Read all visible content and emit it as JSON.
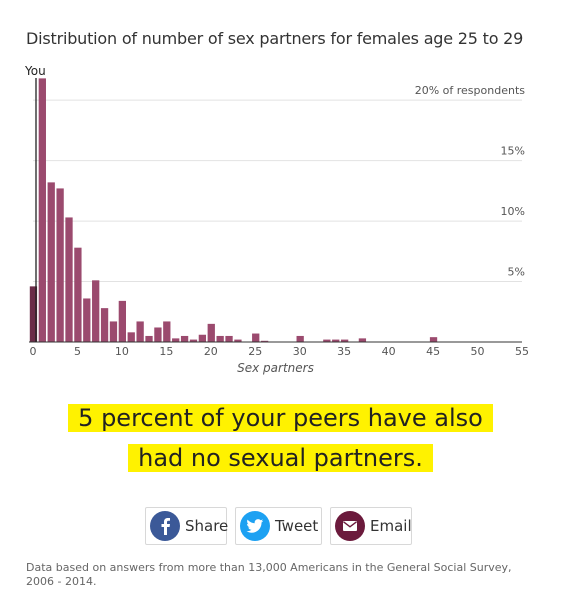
{
  "chart_data": {
    "type": "bar",
    "title": "Distribution of number of sex partners for females age 25 to 29",
    "xlabel": "Sex partners",
    "ylabel": "",
    "xlim": [
      0,
      55
    ],
    "ylim": [
      0,
      21.5
    ],
    "x_ticks": [
      0,
      5,
      10,
      15,
      20,
      25,
      30,
      35,
      40,
      45,
      50,
      55
    ],
    "y_gridlines": [
      {
        "value": 20,
        "label": "20% of respondents"
      },
      {
        "value": 15,
        "label": "15%"
      },
      {
        "value": 10,
        "label": "10%"
      },
      {
        "value": 5,
        "label": "5%"
      }
    ],
    "bar_color": "#9b4a6e",
    "highlight_color": "#6b2c48",
    "highlight_x": 0,
    "marker": {
      "x": 0,
      "label": "You"
    },
    "x": [
      0,
      1,
      2,
      3,
      4,
      5,
      6,
      7,
      8,
      9,
      10,
      11,
      12,
      13,
      14,
      15,
      16,
      17,
      18,
      19,
      20,
      21,
      22,
      23,
      24,
      25,
      26,
      27,
      28,
      29,
      30,
      31,
      32,
      33,
      34,
      35,
      36,
      37,
      38,
      39,
      40,
      41,
      42,
      43,
      44,
      45
    ],
    "values": [
      4.6,
      21.8,
      13.2,
      12.7,
      10.3,
      7.8,
      3.6,
      5.1,
      2.8,
      1.7,
      3.4,
      0.8,
      1.7,
      0.5,
      1.2,
      1.7,
      0.3,
      0.5,
      0.2,
      0.6,
      1.5,
      0.5,
      0.5,
      0.2,
      0,
      0.7,
      0.1,
      0,
      0,
      0,
      0.5,
      0,
      0,
      0.2,
      0.2,
      0.2,
      0,
      0.3,
      0,
      0,
      0,
      0,
      0,
      0,
      0,
      0.4
    ]
  },
  "callout": {
    "line1": "5 percent of your peers have also",
    "line2": "had no sexual partners."
  },
  "share": {
    "share_label": "Share",
    "tweet_label": "Tweet",
    "email_label": "Email",
    "facebook_color": "#3b5998",
    "twitter_color": "#1da1f2",
    "email_color": "#6b1a3c"
  },
  "footnote": "Data based on answers from more than 13,000 Americans in the General Social Survey, 2006 - 2014."
}
